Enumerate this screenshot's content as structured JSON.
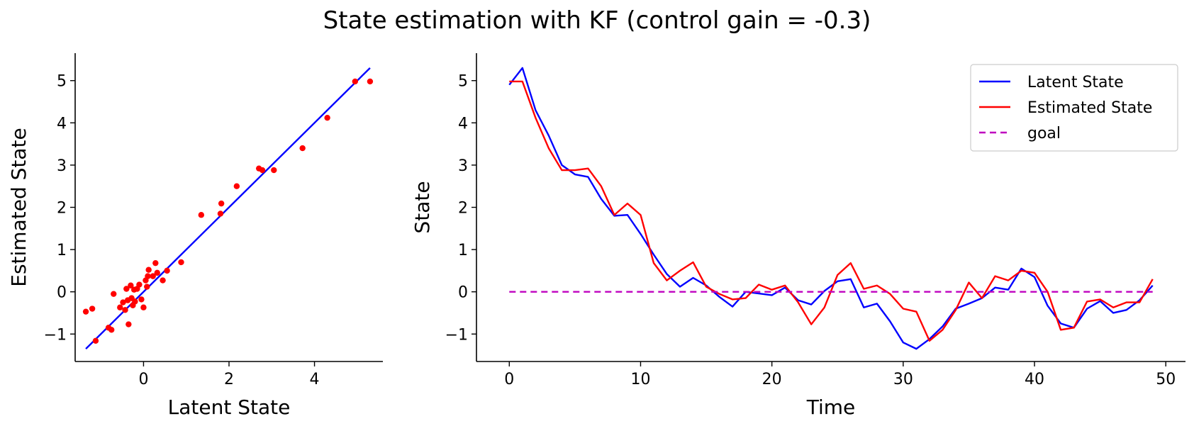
{
  "figure_title": "State estimation with KF (control gain = -0.3)",
  "colors": {
    "latent": "#0000ff",
    "estimated": "#ff0000",
    "goal": "#bf00bf",
    "scatter": "#ff0000",
    "identity_line": "#0000ff"
  },
  "chart_data": [
    {
      "type": "scatter",
      "title": "",
      "xlabel": "Latent State",
      "ylabel": "Estimated State",
      "xlim": [
        -1.6,
        5.6
      ],
      "ylim": [
        -1.65,
        5.65
      ],
      "xticks": [
        0,
        2,
        4
      ],
      "yticks": [
        -1,
        0,
        1,
        2,
        3,
        4,
        5
      ],
      "grid": false,
      "identity_line": [
        [
          -1.35,
          -1.35
        ],
        [
          5.3,
          5.3
        ]
      ],
      "points": [
        [
          -1.35,
          -0.47
        ],
        [
          -1.2,
          -0.4
        ],
        [
          -1.12,
          -1.16
        ],
        [
          -0.82,
          -0.85
        ],
        [
          -0.75,
          -0.9
        ],
        [
          -0.7,
          -0.05
        ],
        [
          -0.55,
          -0.37
        ],
        [
          -0.48,
          -0.25
        ],
        [
          -0.43,
          -0.43
        ],
        [
          -0.4,
          0.07
        ],
        [
          -0.37,
          -0.2
        ],
        [
          -0.35,
          -0.77
        ],
        [
          -0.3,
          0.15
        ],
        [
          -0.28,
          -0.15
        ],
        [
          -0.25,
          -0.32
        ],
        [
          -0.22,
          0.05
        ],
        [
          -0.2,
          -0.23
        ],
        [
          -0.15,
          0.07
        ],
        [
          -0.1,
          0.17
        ],
        [
          -0.05,
          -0.18
        ],
        [
          0.0,
          -0.37
        ],
        [
          0.05,
          0.27
        ],
        [
          0.08,
          0.12
        ],
        [
          0.1,
          0.37
        ],
        [
          0.12,
          0.52
        ],
        [
          0.22,
          0.37
        ],
        [
          0.28,
          0.68
        ],
        [
          0.32,
          0.45
        ],
        [
          0.45,
          0.27
        ],
        [
          0.55,
          0.5
        ],
        [
          0.88,
          0.7
        ],
        [
          1.35,
          1.82
        ],
        [
          1.8,
          1.85
        ],
        [
          1.82,
          2.09
        ],
        [
          2.18,
          2.5
        ],
        [
          2.7,
          2.92
        ],
        [
          2.78,
          2.88
        ],
        [
          3.05,
          2.88
        ],
        [
          3.72,
          3.4
        ],
        [
          4.3,
          4.12
        ],
        [
          4.95,
          4.98
        ],
        [
          5.3,
          4.98
        ]
      ]
    },
    {
      "type": "line",
      "title": "",
      "xlabel": "Time",
      "ylabel": "State",
      "xlim": [
        -2.5,
        51.5
      ],
      "ylim": [
        -1.65,
        5.65
      ],
      "xticks": [
        0,
        10,
        20,
        30,
        40,
        50
      ],
      "yticks": [
        -1,
        0,
        1,
        2,
        3,
        4,
        5
      ],
      "grid": false,
      "legend_position": "upper right",
      "x": [
        0,
        1,
        2,
        3,
        4,
        5,
        6,
        7,
        8,
        9,
        10,
        11,
        12,
        13,
        14,
        15,
        16,
        17,
        18,
        19,
        20,
        21,
        22,
        23,
        24,
        25,
        26,
        27,
        28,
        29,
        30,
        31,
        32,
        33,
        34,
        35,
        36,
        37,
        38,
        39,
        40,
        41,
        42,
        43,
        44,
        45,
        46,
        47,
        48,
        49
      ],
      "series": [
        {
          "name": "Latent State",
          "style": "solid",
          "values": [
            4.9,
            5.3,
            4.3,
            3.7,
            3.0,
            2.78,
            2.72,
            2.2,
            1.8,
            1.82,
            1.37,
            0.88,
            0.42,
            0.12,
            0.33,
            0.15,
            -0.12,
            -0.35,
            0.0,
            -0.04,
            -0.08,
            0.1,
            -0.2,
            -0.3,
            0.02,
            0.25,
            0.3,
            -0.37,
            -0.28,
            -0.7,
            -1.2,
            -1.35,
            -1.12,
            -0.82,
            -0.4,
            -0.28,
            -0.15,
            0.1,
            0.05,
            0.55,
            0.35,
            -0.33,
            -0.75,
            -0.85,
            -0.4,
            -0.22,
            -0.5,
            -0.43,
            -0.2,
            0.15
          ]
        },
        {
          "name": "Estimated State",
          "style": "solid",
          "values": [
            4.98,
            4.98,
            4.12,
            3.4,
            2.88,
            2.88,
            2.92,
            2.5,
            1.82,
            2.09,
            1.82,
            0.68,
            0.27,
            0.5,
            0.7,
            0.12,
            -0.05,
            -0.18,
            -0.15,
            0.17,
            0.05,
            0.15,
            -0.25,
            -0.77,
            -0.37,
            0.4,
            0.68,
            0.07,
            0.15,
            -0.05,
            -0.4,
            -0.47,
            -1.16,
            -0.9,
            -0.43,
            0.22,
            -0.15,
            0.37,
            0.27,
            0.5,
            0.45,
            0.0,
            -0.9,
            -0.85,
            -0.23,
            -0.18,
            -0.37,
            -0.25,
            -0.25,
            0.3
          ]
        },
        {
          "name": "goal",
          "style": "dashed",
          "values": [
            0,
            0,
            0,
            0,
            0,
            0,
            0,
            0,
            0,
            0,
            0,
            0,
            0,
            0,
            0,
            0,
            0,
            0,
            0,
            0,
            0,
            0,
            0,
            0,
            0,
            0,
            0,
            0,
            0,
            0,
            0,
            0,
            0,
            0,
            0,
            0,
            0,
            0,
            0,
            0,
            0,
            0,
            0,
            0,
            0,
            0,
            0,
            0,
            0,
            0
          ]
        }
      ]
    }
  ]
}
